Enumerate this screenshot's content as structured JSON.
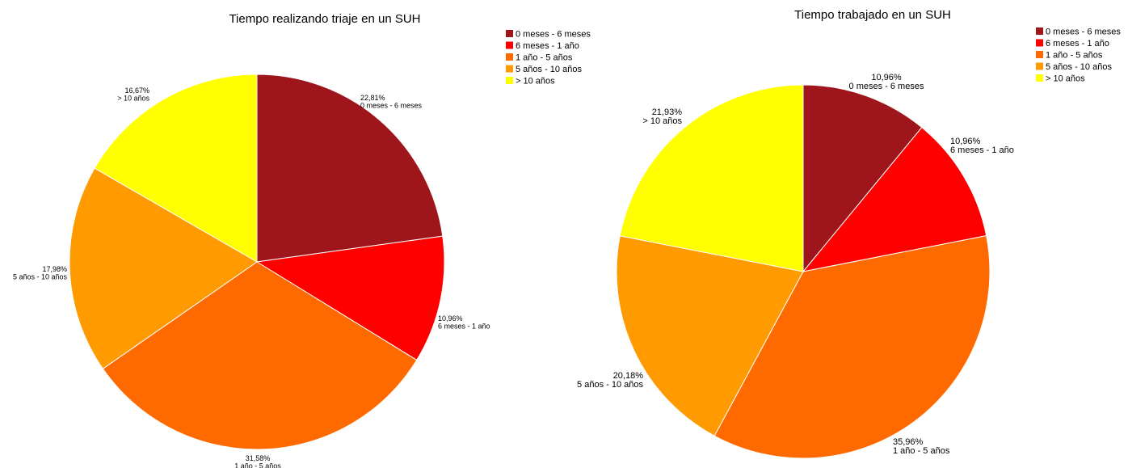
{
  "chart_data": [
    {
      "type": "pie",
      "title": "Tiempo realizando triaje en un SUH",
      "legend_placement": "top-right",
      "slices": [
        {
          "label": "0 meses - 6 meses",
          "value": 22.81,
          "value_text": "22,81%",
          "color": "#9e161b"
        },
        {
          "label": "6 meses - 1 año",
          "value": 10.96,
          "value_text": "10,96%",
          "color": "#ff0000"
        },
        {
          "label": "1 año - 5 años",
          "value": 31.58,
          "value_text": "31,58%",
          "color": "#ff6a00"
        },
        {
          "label": "5 años - 10 años",
          "value": 17.98,
          "value_text": "17,98%",
          "color": "#ff9a00"
        },
        {
          "label": "> 10 años",
          "value": 16.67,
          "value_text": "16,67%",
          "color": "#ffff00"
        }
      ]
    },
    {
      "type": "pie",
      "title": "Tiempo trabajado en un SUH",
      "legend_placement": "top-right",
      "slices": [
        {
          "label": "0 meses - 6 meses",
          "value": 10.96,
          "value_text": "10,96%",
          "color": "#9e161b"
        },
        {
          "label": "6 meses - 1 año",
          "value": 10.96,
          "value_text": "10,96%",
          "color": "#ff0000"
        },
        {
          "label": "1 año - 5 años",
          "value": 35.96,
          "value_text": "35,96%",
          "color": "#ff6a00"
        },
        {
          "label": "5 años - 10 años",
          "value": 20.18,
          "value_text": "20,18%",
          "color": "#ff9a00"
        },
        {
          "label": "> 10 años",
          "value": 21.93,
          "value_text": "21,93%",
          "color": "#ffff00"
        }
      ]
    }
  ]
}
